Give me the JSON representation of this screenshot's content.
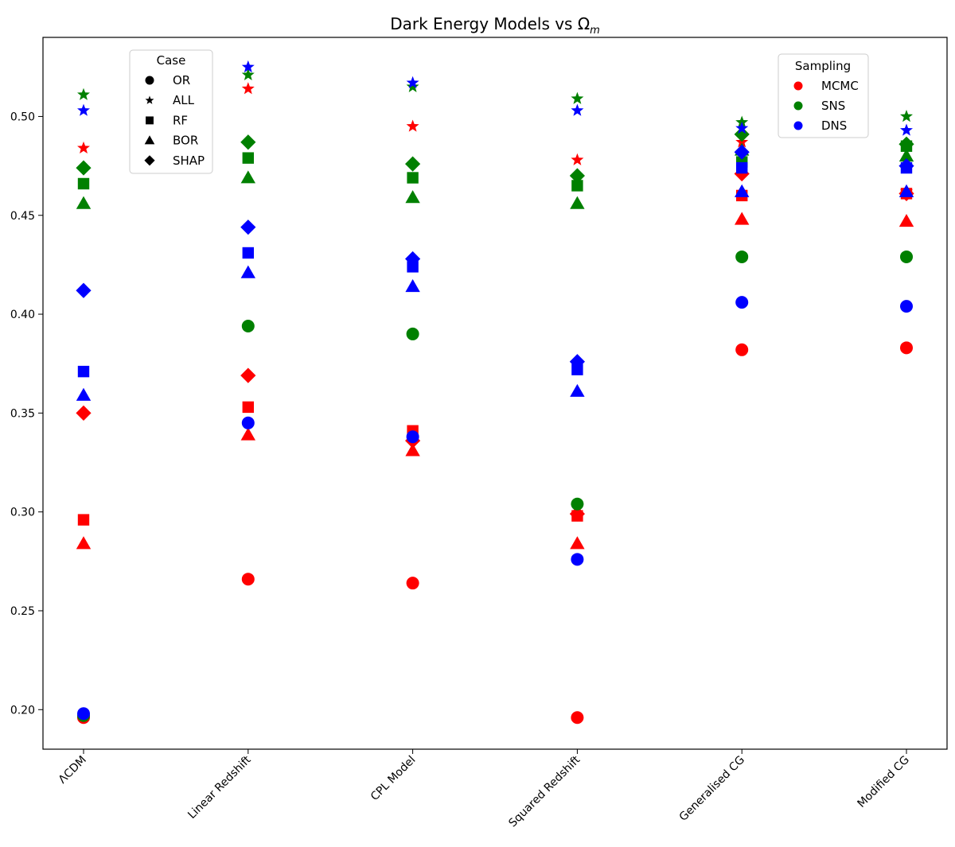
{
  "chart_data": {
    "type": "scatter",
    "title_main": "Dark Energy Models vs Ω",
    "title_sub": "m",
    "categories": [
      "ΛCDM",
      "Linear Redshift",
      "CPL Model",
      "Squared Redshift",
      "Generalised CG",
      "Modified CG"
    ],
    "ylim": [
      0.18,
      0.54
    ],
    "yticks": [
      "0.20",
      "0.25",
      "0.30",
      "0.35",
      "0.40",
      "0.45",
      "0.50"
    ],
    "grid": false,
    "legend_case": {
      "title": "Case",
      "placement": "upper-left",
      "entries": [
        {
          "label": "OR",
          "marker": "circle"
        },
        {
          "label": "ALL",
          "marker": "star"
        },
        {
          "label": "RF",
          "marker": "square"
        },
        {
          "label": "BOR",
          "marker": "triangle"
        },
        {
          "label": "SHAP",
          "marker": "diamond"
        }
      ]
    },
    "legend_sampling": {
      "title": "Sampling",
      "placement": "upper-right",
      "entries": [
        {
          "label": "MCMC",
          "color": "#ff0000"
        },
        {
          "label": "SNS",
          "color": "#008000"
        },
        {
          "label": "DNS",
          "color": "#0000ff"
        }
      ]
    },
    "series": [
      {
        "name": "MCMC",
        "color": "#ff0000",
        "points": [
          {
            "case": "OR",
            "values": [
              0.196,
              0.266,
              0.264,
              0.196,
              0.382,
              0.383
            ]
          },
          {
            "case": "ALL",
            "values": [
              0.484,
              0.514,
              0.495,
              0.478,
              0.487,
              0.462
            ]
          },
          {
            "case": "RF",
            "values": [
              0.296,
              0.353,
              0.341,
              0.298,
              0.46,
              0.461
            ]
          },
          {
            "case": "BOR",
            "values": [
              0.284,
              0.339,
              0.331,
              0.284,
              0.448,
              0.447
            ]
          },
          {
            "case": "SHAP",
            "values": [
              0.35,
              0.369,
              0.336,
              0.299,
              0.471,
              0.461
            ]
          }
        ]
      },
      {
        "name": "SNS",
        "color": "#008000",
        "points": [
          {
            "case": "OR",
            "values": [
              0.197,
              0.394,
              0.39,
              0.304,
              0.429,
              0.429
            ]
          },
          {
            "case": "ALL",
            "values": [
              0.511,
              0.521,
              0.515,
              0.509,
              0.497,
              0.5
            ]
          },
          {
            "case": "RF",
            "values": [
              0.466,
              0.479,
              0.469,
              0.465,
              0.477,
              0.485
            ]
          },
          {
            "case": "BOR",
            "values": [
              0.456,
              0.469,
              0.459,
              0.456,
              0.483,
              0.48
            ]
          },
          {
            "case": "SHAP",
            "values": [
              0.474,
              0.487,
              0.476,
              0.47,
              0.491,
              0.486
            ]
          }
        ]
      },
      {
        "name": "DNS",
        "color": "#0000ff",
        "points": [
          {
            "case": "OR",
            "values": [
              0.198,
              0.345,
              0.338,
              0.276,
              0.406,
              0.404
            ]
          },
          {
            "case": "ALL",
            "values": [
              0.503,
              0.525,
              0.517,
              0.503,
              0.494,
              0.493
            ]
          },
          {
            "case": "RF",
            "values": [
              0.371,
              0.431,
              0.424,
              0.372,
              0.474,
              0.474
            ]
          },
          {
            "case": "BOR",
            "values": [
              0.359,
              0.421,
              0.414,
              0.361,
              0.462,
              0.462
            ]
          },
          {
            "case": "SHAP",
            "values": [
              0.412,
              0.444,
              0.428,
              0.376,
              0.482,
              0.475
            ]
          }
        ]
      }
    ]
  }
}
